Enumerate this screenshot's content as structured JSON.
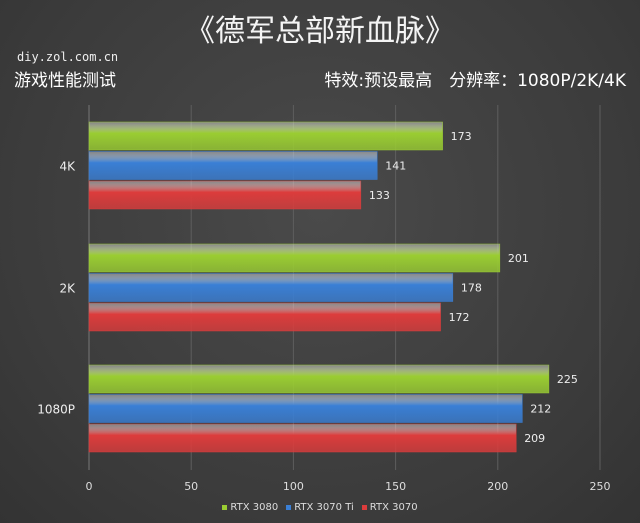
{
  "header": {
    "title": "《德军总部新血脉》",
    "site": "diy.zol.com.cn",
    "subtitle": "游戏性能测试",
    "settings": "特效:预设最高　分辨率：1080P/2K/4K"
  },
  "chart_data": {
    "type": "bar",
    "orientation": "horizontal",
    "categories": [
      "4K",
      "2K",
      "1080P"
    ],
    "series": [
      {
        "name": "RTX 3080",
        "color": "#9acd32",
        "values": [
          173,
          201,
          225
        ]
      },
      {
        "name": "RTX 3070 Ti",
        "color": "#3a7fd5",
        "values": [
          141,
          178,
          212
        ]
      },
      {
        "name": "RTX 3070",
        "color": "#dc3c3c",
        "values": [
          133,
          172,
          209
        ]
      }
    ],
    "xlim": [
      0,
      250
    ],
    "xticks": [
      0,
      50,
      100,
      150,
      200,
      250
    ],
    "grid": true,
    "legend": "bottom",
    "data_labels": true
  }
}
